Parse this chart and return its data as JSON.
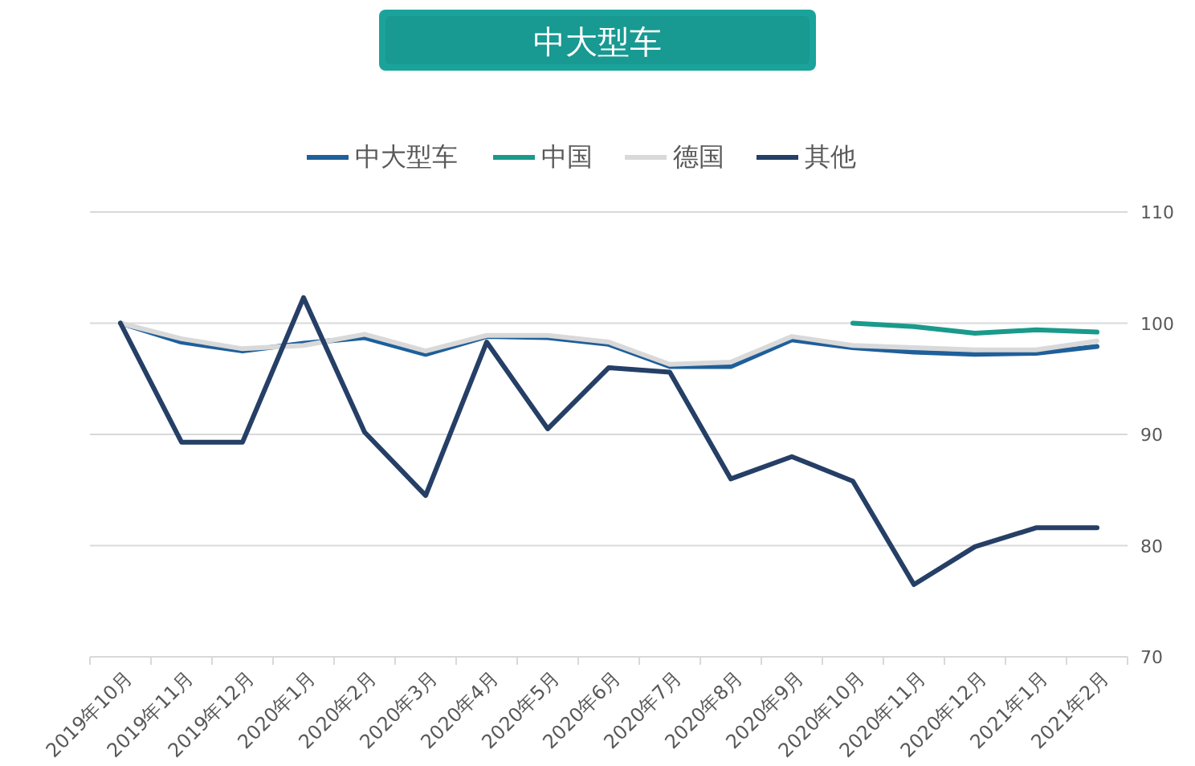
{
  "chart_data": {
    "type": "line",
    "title": "中大型车",
    "categories": [
      "2019年10月",
      "2019年11月",
      "2019年12月",
      "2020年1月",
      "2020年2月",
      "2020年3月",
      "2020年4月",
      "2020年5月",
      "2020年6月",
      "2020年7月",
      "2020年8月",
      "2020年9月",
      "2020年10月",
      "2020年11月",
      "2020年12月",
      "2021年1月",
      "2021年2月"
    ],
    "series": [
      {
        "name": "中大型车",
        "color": "#1f5f9a",
        "values": [
          100,
          98.3,
          97.5,
          98.2,
          98.7,
          97.2,
          98.8,
          98.7,
          98.1,
          96.1,
          96.1,
          98.5,
          97.8,
          97.4,
          97.2,
          97.3,
          97.9
        ]
      },
      {
        "name": "中国",
        "color": "#1a9a8a",
        "values": [
          null,
          null,
          null,
          null,
          null,
          null,
          null,
          null,
          null,
          null,
          null,
          null,
          100,
          99.7,
          99.1,
          99.4,
          99.2
        ]
      },
      {
        "name": "德国",
        "color": "#d9d9d9",
        "values": [
          100,
          98.6,
          97.7,
          98.0,
          99.0,
          97.5,
          98.9,
          98.9,
          98.3,
          96.3,
          96.5,
          98.8,
          98.0,
          97.8,
          97.6,
          97.6,
          98.4
        ]
      },
      {
        "name": "其他",
        "color": "#253f66",
        "values": [
          100,
          89.3,
          89.3,
          102.3,
          90.2,
          84.5,
          98.3,
          90.5,
          96,
          95.6,
          86,
          88,
          85.8,
          76.5,
          79.9,
          81.6,
          81.6
        ]
      }
    ],
    "ylim": [
      70,
      110
    ],
    "yticks": [
      70,
      80,
      90,
      100,
      110
    ],
    "grid": "y",
    "legend": "top",
    "marker": "none",
    "line_style": "solid"
  }
}
